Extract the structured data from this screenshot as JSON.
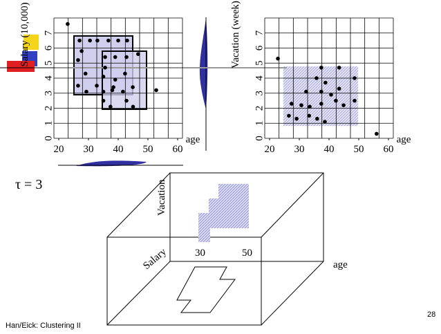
{
  "chart_data": [
    {
      "type": "scatter",
      "y_label": "Salary (10,000)",
      "x_label": "age",
      "x": [
        23,
        27,
        30.5,
        33,
        36.7,
        40,
        43,
        27.7,
        35.6,
        39,
        42.8,
        46.7,
        26.5,
        35.6,
        29,
        42.3,
        39,
        35,
        26.5,
        32.8,
        38.4,
        44.9,
        52.8,
        29.3,
        35,
        41.6,
        38,
        35,
        42.8,
        37.4,
        45
      ],
      "values": [
        7.6,
        6.5,
        6.5,
        6.5,
        6.5,
        6.5,
        6.5,
        5.8,
        5.4,
        5.4,
        5.4,
        5.6,
        5.2,
        4.7,
        4.3,
        4.3,
        3.9,
        4.1,
        3.5,
        3.5,
        3.4,
        3.4,
        3.2,
        3.1,
        3.1,
        3.1,
        3.2,
        2.5,
        2.5,
        2.1,
        2.1
      ],
      "color": "#000000",
      "xlim": [
        20,
        60
      ],
      "ylim": [
        0,
        8
      ],
      "xticks": [
        20,
        30,
        40,
        50,
        60
      ],
      "yticks": [
        0,
        1,
        2,
        3,
        4,
        5,
        6,
        7
      ],
      "grid": true
    },
    {
      "type": "scatter",
      "y_label": "Vacation (week)",
      "x_label": "age",
      "x": [
        22.8,
        56,
        37.4,
        43.4,
        35.8,
        38.8,
        48.6,
        32.3,
        37.4,
        43.4,
        42.3,
        48.6,
        27.4,
        30.7,
        33.5,
        37.4,
        40.7,
        44.9,
        26.5,
        29.1,
        33.3,
        36,
        38.6
      ],
      "values": [
        5.3,
        0.3,
        4.7,
        4.7,
        4.0,
        3.7,
        4.0,
        3.1,
        3.1,
        3.3,
        2.5,
        2.5,
        2.3,
        2.2,
        2.1,
        2.3,
        2.9,
        2.2,
        1.5,
        1.3,
        1.5,
        1.3,
        1.1
      ],
      "color": "#000000",
      "xlim": [
        20,
        60
      ],
      "ylim": [
        0,
        8
      ],
      "xticks": [
        20,
        30,
        40,
        50,
        60
      ],
      "yticks": [
        0,
        1,
        2,
        3,
        4,
        5,
        6,
        7
      ],
      "grid": true
    }
  ],
  "tau": "τ = 3",
  "cube": {
    "vacation": "Vacation",
    "salary": "Salary",
    "tick_low": "30",
    "tick_high": "50",
    "age": "age"
  },
  "footer": {
    "source": "Han/Eick: Clustering II",
    "page": "28"
  }
}
